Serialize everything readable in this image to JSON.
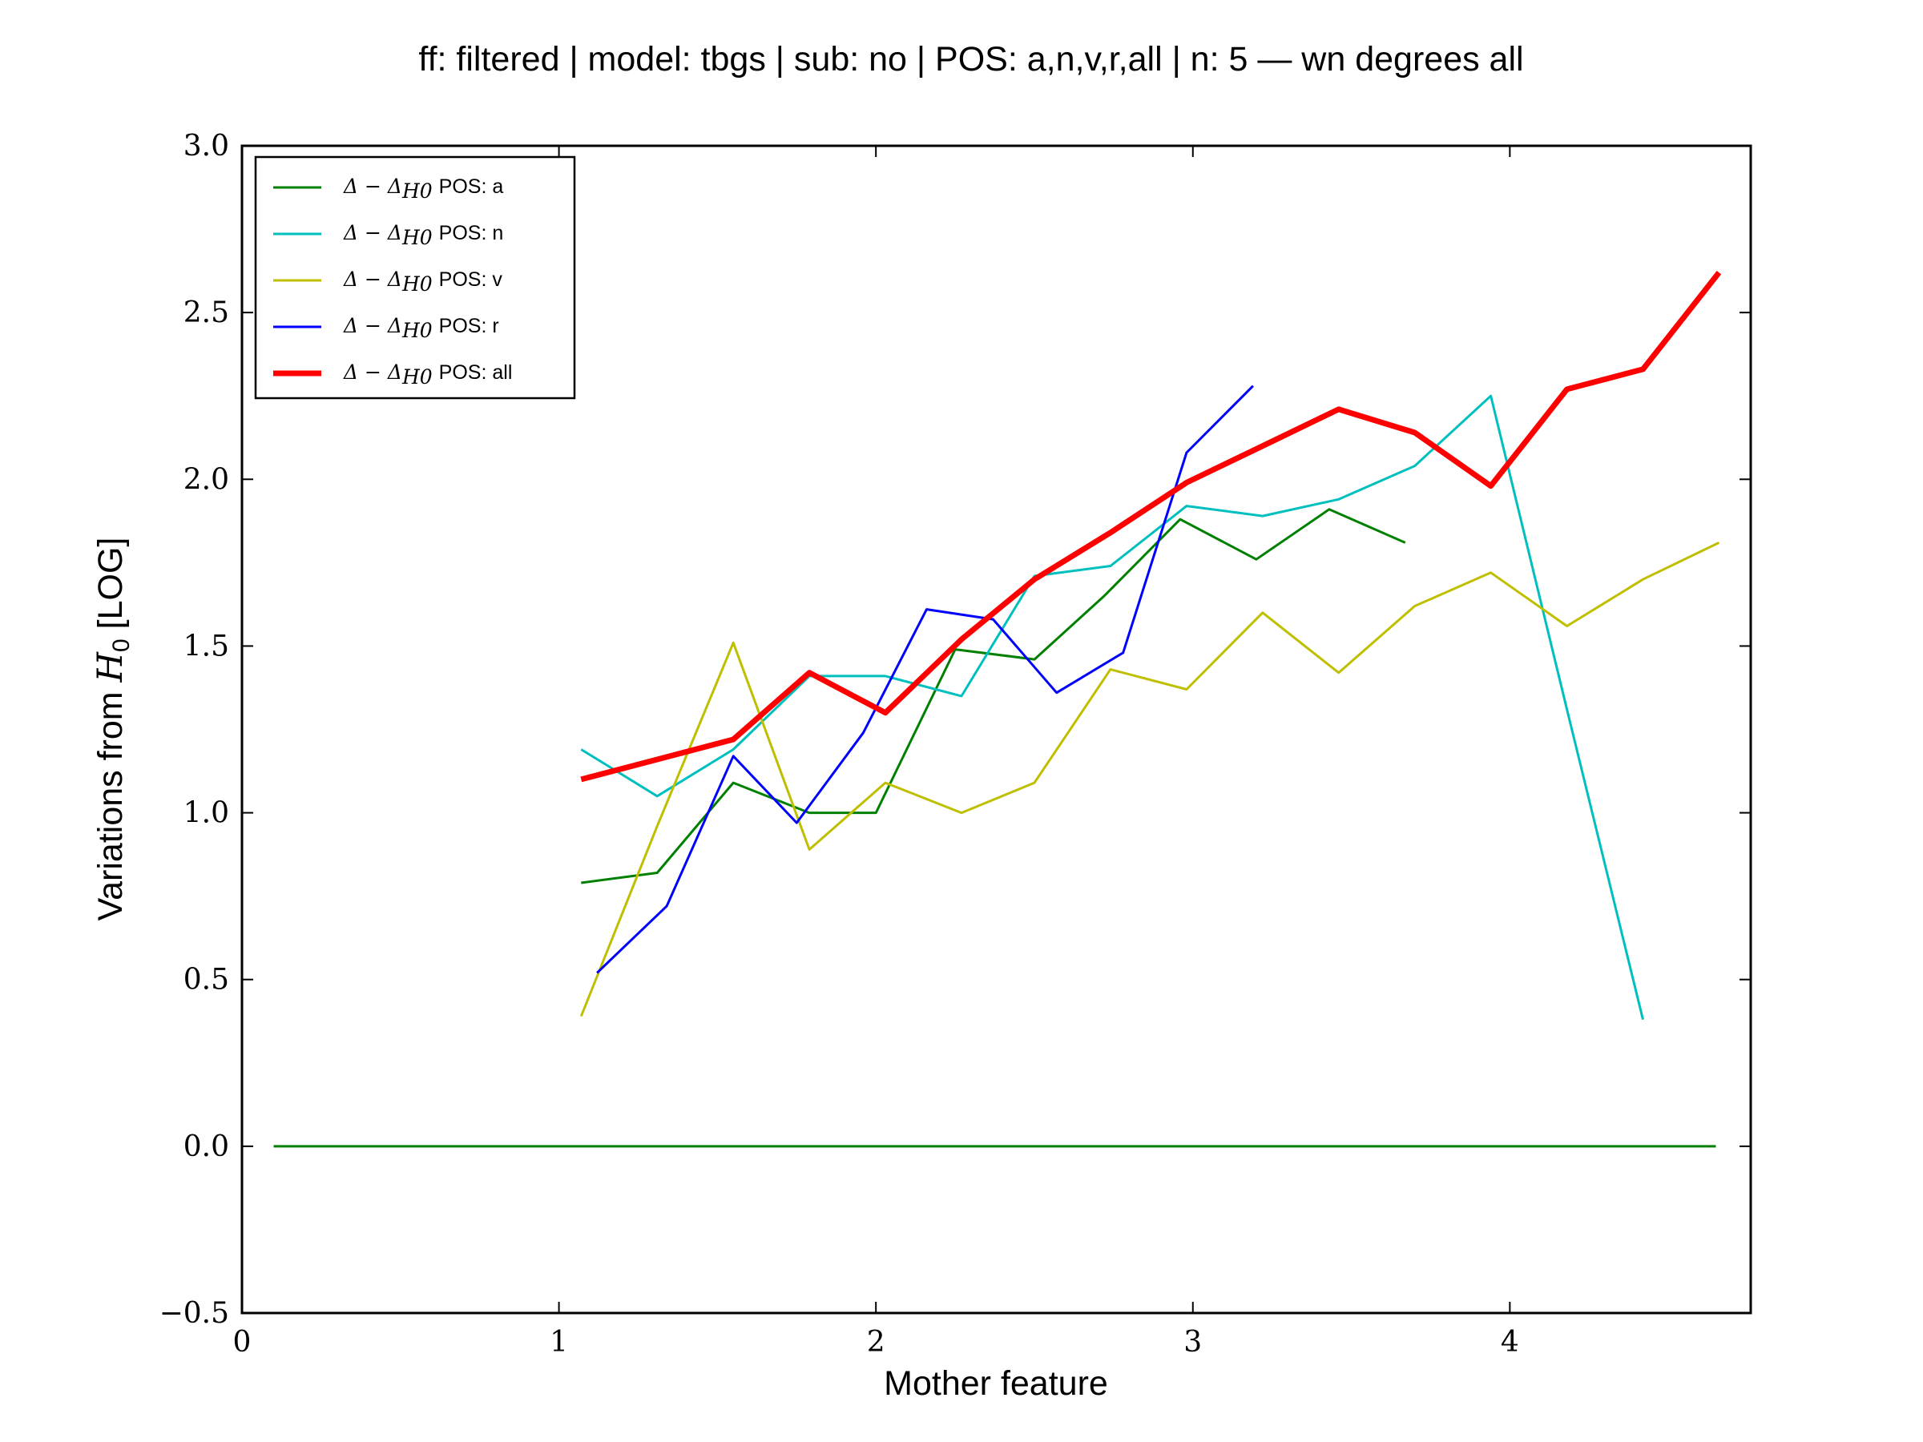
{
  "chart_data": {
    "type": "line",
    "title": "ff: filtered | model: tbgs | sub: no | POS: a,n,v,r,all | n: 5 — wn degrees all",
    "xlabel": "Mother feature",
    "ylabel": "Variations from H0 [LOG]",
    "ylabel_main": "Variations from ",
    "ylabel_math": "H",
    "ylabel_sub": "0",
    "ylabel_tail": " [LOG]",
    "xlim": [
      0,
      4.76
    ],
    "ylim": [
      -0.5,
      3.0
    ],
    "xticks": [
      0,
      1,
      2,
      3,
      4
    ],
    "xtick_labels": [
      "0",
      "1",
      "2",
      "3",
      "4"
    ],
    "yticks": [
      -0.5,
      0.0,
      0.5,
      1.0,
      1.5,
      2.0,
      2.5,
      3.0
    ],
    "ytick_labels": [
      "−0.5",
      "0.0",
      "0.5",
      "1.0",
      "1.5",
      "2.0",
      "2.5",
      "3.0"
    ],
    "grid": false,
    "legend_position": "top-left",
    "legend_prefix": "Δ − Δ",
    "legend_prefix_sub": "H0",
    "baseline": {
      "name": "H0",
      "x": [
        0.1,
        4.65
      ],
      "y": [
        0.0,
        0.0
      ],
      "color": "#008000"
    },
    "series": [
      {
        "name": "POS: a",
        "color": "#008000",
        "width": 3,
        "x": [
          1.07,
          1.31,
          1.55,
          1.79,
          2.0,
          2.25,
          2.5,
          2.72,
          2.96,
          3.2,
          3.43,
          3.67
        ],
        "y": [
          0.79,
          0.82,
          1.09,
          1.0,
          1.0,
          1.49,
          1.46,
          1.65,
          1.88,
          1.76,
          1.91,
          1.81
        ]
      },
      {
        "name": "POS: n",
        "color": "#00bfbf",
        "width": 3,
        "x": [
          1.07,
          1.31,
          1.55,
          1.79,
          2.03,
          2.27,
          2.5,
          2.74,
          2.98,
          3.22,
          3.46,
          3.7,
          3.94,
          4.18,
          4.42
        ],
        "y": [
          1.19,
          1.05,
          1.19,
          1.41,
          1.41,
          1.35,
          1.71,
          1.74,
          1.92,
          1.89,
          1.94,
          2.04,
          2.25,
          1.31,
          0.38
        ]
      },
      {
        "name": "POS: v",
        "color": "#bfbf00",
        "width": 3,
        "x": [
          1.07,
          1.31,
          1.55,
          1.79,
          2.03,
          2.27,
          2.5,
          2.74,
          2.98,
          3.22,
          3.46,
          3.7,
          3.94,
          4.18,
          4.42,
          4.66
        ],
        "y": [
          0.39,
          0.96,
          1.51,
          0.89,
          1.09,
          1.0,
          1.09,
          1.43,
          1.37,
          1.6,
          1.42,
          1.62,
          1.72,
          1.56,
          1.7,
          1.81
        ]
      },
      {
        "name": "POS: r",
        "color": "#0000ff",
        "width": 3,
        "x": [
          1.12,
          1.34,
          1.55,
          1.75,
          1.96,
          2.16,
          2.37,
          2.57,
          2.78,
          2.98,
          3.19
        ],
        "y": [
          0.52,
          0.72,
          1.17,
          0.97,
          1.24,
          1.61,
          1.58,
          1.36,
          1.48,
          2.08,
          2.28
        ]
      },
      {
        "name": "POS: all",
        "color": "#ff0000",
        "width": 7,
        "x": [
          1.07,
          1.31,
          1.55,
          1.79,
          2.03,
          2.27,
          2.5,
          2.74,
          2.98,
          3.22,
          3.46,
          3.7,
          3.94,
          4.18,
          4.42,
          4.66
        ],
        "y": [
          1.1,
          1.16,
          1.22,
          1.42,
          1.3,
          1.52,
          1.7,
          1.84,
          1.99,
          2.1,
          2.21,
          2.14,
          1.98,
          2.27,
          2.33,
          2.62
        ]
      }
    ]
  }
}
